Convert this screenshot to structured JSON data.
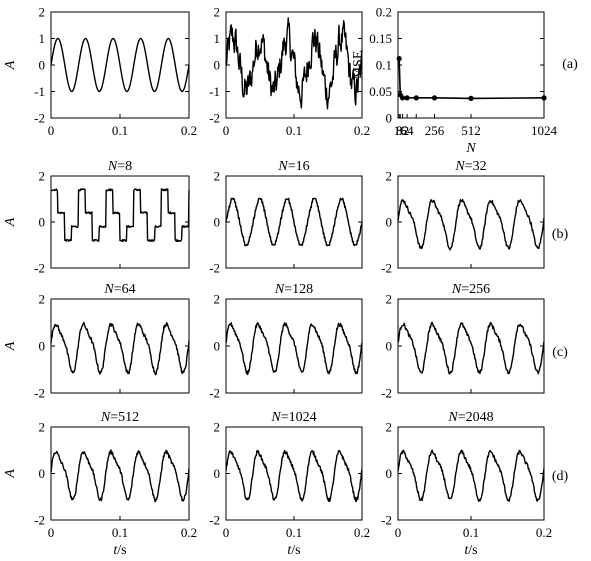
{
  "chart_data": [
    {
      "id": "a1",
      "type": "line",
      "title": "",
      "xlabel": "",
      "ylabel": "A",
      "xlim": [
        0,
        0.2
      ],
      "ylim": [
        -2,
        2
      ],
      "xticks": [
        "0",
        "0.1",
        "0.2"
      ],
      "yticks": [
        "-2",
        "-1",
        "0",
        "1",
        "2"
      ],
      "series": [
        {
          "kind": "sine",
          "amplitude": 1,
          "cycles": 5,
          "noise": 0,
          "quant": 0
        }
      ]
    },
    {
      "id": "a2",
      "type": "line",
      "title": "",
      "xlabel": "",
      "ylabel": "",
      "xlim": [
        0,
        0.2
      ],
      "ylim": [
        -2,
        2
      ],
      "xticks": [
        "0",
        "0.1",
        "0.2"
      ],
      "yticks": [
        "-2",
        "-1",
        "0",
        "1",
        "2"
      ],
      "series": [
        {
          "kind": "noisy-sine",
          "amplitude": 1,
          "cycles": 5,
          "noise": 0.75,
          "quant": 0
        }
      ]
    },
    {
      "id": "a3",
      "type": "line",
      "title": "",
      "xlabel": "N",
      "ylabel": "MSE",
      "xlim": [
        0,
        1024
      ],
      "ylim": [
        0,
        0.2
      ],
      "xticks": [
        "8",
        "16",
        "32",
        "64",
        "256",
        "512",
        "1024"
      ],
      "yticks": [
        "0",
        "0.05",
        "0.1",
        "0.15",
        "0.2"
      ],
      "x": [
        8,
        16,
        32,
        64,
        128,
        256,
        512,
        1024
      ],
      "y": [
        0.112,
        0.044,
        0.038,
        0.038,
        0.038,
        0.038,
        0.037,
        0.038
      ]
    },
    {
      "id": "b1",
      "type": "line",
      "title": "N=8",
      "xlabel": "",
      "ylabel": "A",
      "xlim": [
        0,
        0.2
      ],
      "ylim": [
        -2,
        2
      ],
      "xticks": [],
      "yticks": [
        "-2",
        "0",
        "2"
      ],
      "series": [
        {
          "kind": "reconstruction",
          "amplitude": 1,
          "cycles": 5,
          "noise": 0.05,
          "quant": 8
        }
      ]
    },
    {
      "id": "b2",
      "type": "line",
      "title": "N=16",
      "xlabel": "",
      "ylabel": "",
      "xlim": [
        0,
        0.2
      ],
      "ylim": [
        -2,
        2
      ],
      "xticks": [],
      "yticks": [
        "-2",
        "0",
        "2"
      ],
      "series": [
        {
          "kind": "reconstruction",
          "amplitude": 1,
          "cycles": 5,
          "noise": 0.04,
          "quant": 16
        }
      ]
    },
    {
      "id": "b3",
      "type": "line",
      "title": "N=32",
      "xlabel": "",
      "ylabel": "",
      "xlim": [
        0,
        0.2
      ],
      "ylim": [
        -2,
        2
      ],
      "xticks": [],
      "yticks": [
        "-2",
        "0",
        "2"
      ],
      "series": [
        {
          "kind": "reconstruction",
          "amplitude": 1,
          "cycles": 5,
          "noise": 0.1,
          "quant": 32
        }
      ]
    },
    {
      "id": "c1",
      "type": "line",
      "title": "N=64",
      "xlabel": "",
      "ylabel": "A",
      "xlim": [
        0,
        0.2
      ],
      "ylim": [
        -2,
        2
      ],
      "xticks": [],
      "yticks": [
        "-2",
        "0",
        "2"
      ],
      "series": [
        {
          "kind": "reconstruction",
          "amplitude": 1,
          "cycles": 5,
          "noise": 0.1,
          "quant": 64
        }
      ]
    },
    {
      "id": "c2",
      "type": "line",
      "title": "N=128",
      "xlabel": "",
      "ylabel": "",
      "xlim": [
        0,
        0.2
      ],
      "ylim": [
        -2,
        2
      ],
      "xticks": [],
      "yticks": [
        "-2",
        "0",
        "2"
      ],
      "series": [
        {
          "kind": "reconstruction",
          "amplitude": 1,
          "cycles": 5,
          "noise": 0.1,
          "quant": 128
        }
      ]
    },
    {
      "id": "c3",
      "type": "line",
      "title": "N=256",
      "xlabel": "",
      "ylabel": "",
      "xlim": [
        0,
        0.2
      ],
      "ylim": [
        -2,
        2
      ],
      "xticks": [],
      "yticks": [
        "-2",
        "0",
        "2"
      ],
      "series": [
        {
          "kind": "reconstruction",
          "amplitude": 1,
          "cycles": 5,
          "noise": 0.1,
          "quant": 256
        }
      ]
    },
    {
      "id": "d1",
      "type": "line",
      "title": "N=512",
      "xlabel": "t/s",
      "ylabel": "A",
      "xlim": [
        0,
        0.2
      ],
      "ylim": [
        -2,
        2
      ],
      "xticks": [
        "0",
        "0.1",
        "0.2"
      ],
      "yticks": [
        "-2",
        "0",
        "2"
      ],
      "series": [
        {
          "kind": "reconstruction",
          "amplitude": 1,
          "cycles": 5,
          "noise": 0.1,
          "quant": 512
        }
      ]
    },
    {
      "id": "d2",
      "type": "line",
      "title": "N=1024",
      "xlabel": "t/s",
      "ylabel": "",
      "xlim": [
        0,
        0.2
      ],
      "ylim": [
        -2,
        2
      ],
      "xticks": [
        "0",
        "0.1",
        "0.2"
      ],
      "yticks": [
        "-2",
        "0",
        "2"
      ],
      "series": [
        {
          "kind": "reconstruction",
          "amplitude": 1,
          "cycles": 5,
          "noise": 0.1,
          "quant": 1024
        }
      ]
    },
    {
      "id": "d3",
      "type": "line",
      "title": "N=2048",
      "xlabel": "t/s",
      "ylabel": "",
      "xlim": [
        0,
        0.2
      ],
      "ylim": [
        -2,
        2
      ],
      "xticks": [
        "0",
        "0.1",
        "0.2"
      ],
      "yticks": [
        "-2",
        "0",
        "2"
      ],
      "series": [
        {
          "kind": "reconstruction",
          "amplitude": 1,
          "cycles": 5,
          "noise": 0.1,
          "quant": 2048
        }
      ]
    }
  ],
  "row_labels": {
    "a": "(a)",
    "b": "(b)",
    "c": "(c)",
    "d": "(d)"
  }
}
